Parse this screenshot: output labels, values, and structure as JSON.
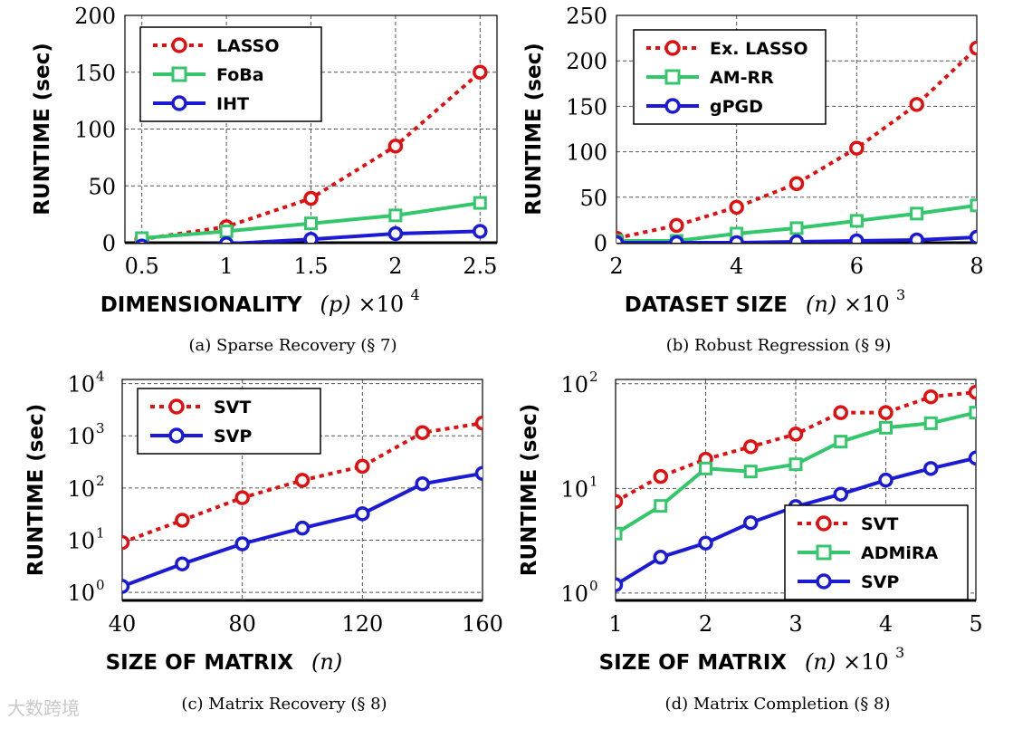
{
  "watermark": "大数跨境",
  "colors": {
    "red": "#e01010",
    "green": "#33c66b",
    "blue": "#1b1bd6"
  },
  "chart_data": [
    {
      "type": "line",
      "caption": "(a) Sparse Recovery (§ 7)",
      "ylabel": "RUNTIME (sec)",
      "xlabel": "DIMENSIONALITY",
      "xvar": "(p)",
      "xunit": "×10",
      "xunit_exp": "4",
      "yscale": "linear",
      "xlim": [
        0.4,
        2.6
      ],
      "ylim": [
        0,
        200
      ],
      "xticks": [
        0.5,
        1,
        1.5,
        2,
        2.5
      ],
      "xticklabels": [
        "0.5",
        "1",
        "1.5",
        "2",
        "2.5"
      ],
      "yticks": [
        0,
        50,
        100,
        150,
        200
      ],
      "yticklabels": [
        "0",
        "50",
        "100",
        "150",
        "200"
      ],
      "grid": true,
      "legend": "top-left",
      "series": [
        {
          "name": "LASSO",
          "color": "#e01010",
          "marker": "circle",
          "dash": true,
          "x": [
            0.5,
            1,
            1.5,
            2,
            2.5
          ],
          "y": [
            3,
            14,
            39,
            85,
            150
          ]
        },
        {
          "name": "FoBa",
          "color": "#33c66b",
          "marker": "square",
          "dash": false,
          "x": [
            0.5,
            1,
            1.5,
            2,
            2.5
          ],
          "y": [
            4,
            10,
            17,
            24,
            35
          ]
        },
        {
          "name": "IHT",
          "color": "#1b1bd6",
          "marker": "circle",
          "dash": false,
          "x": [
            0.5,
            1,
            1.5,
            2,
            2.5
          ],
          "y": [
            -3,
            -1,
            3,
            8,
            10
          ]
        }
      ]
    },
    {
      "type": "line",
      "caption": "(b) Robust Regression (§ 9)",
      "ylabel": "RUNTIME (sec)",
      "xlabel": "DATASET SIZE",
      "xvar": "(n)",
      "xunit": "×10",
      "xunit_exp": "3",
      "yscale": "linear",
      "xlim": [
        2,
        8
      ],
      "ylim": [
        0,
        250
      ],
      "xticks": [
        2,
        4,
        6,
        8
      ],
      "xticklabels": [
        "2",
        "4",
        "6",
        "8"
      ],
      "yticks": [
        0,
        50,
        100,
        150,
        200,
        250
      ],
      "yticklabels": [
        "0",
        "50",
        "100",
        "150",
        "200",
        "250"
      ],
      "grid": true,
      "legend": "top-right",
      "series": [
        {
          "name": "Ex. LASSO",
          "color": "#e01010",
          "marker": "circle",
          "dash": true,
          "x": [
            2,
            3,
            4,
            5,
            6,
            7,
            8
          ],
          "y": [
            5,
            19,
            39,
            65,
            104,
            152,
            214
          ]
        },
        {
          "name": "AM-RR",
          "color": "#33c66b",
          "marker": "square",
          "dash": false,
          "x": [
            2,
            3,
            4,
            5,
            6,
            7,
            8
          ],
          "y": [
            2,
            2,
            10,
            16,
            24,
            32,
            41
          ]
        },
        {
          "name": "gPGD",
          "color": "#1b1bd6",
          "marker": "circle",
          "dash": false,
          "x": [
            2,
            3,
            4,
            5,
            6,
            7,
            8
          ],
          "y": [
            0,
            0,
            0,
            1,
            2,
            3,
            6
          ]
        }
      ]
    },
    {
      "type": "line",
      "caption": "(c) Matrix Recovery (§ 8)",
      "ylabel": "RUNTIME (sec)",
      "xlabel": "SIZE OF MATRIX",
      "xvar": "(n)",
      "xunit": "",
      "xunit_exp": "",
      "yscale": "log",
      "xlim": [
        40,
        160
      ],
      "ylim": [
        0.7,
        12000
      ],
      "xticks": [
        40,
        80,
        120,
        160
      ],
      "xticklabels": [
        "40",
        "80",
        "120",
        "160"
      ],
      "yticks": [
        1,
        10,
        100,
        1000,
        10000
      ],
      "ytickbase": "10",
      "ytickexps": [
        "0",
        "1",
        "2",
        "3",
        "4"
      ],
      "grid": true,
      "legend": "top-left",
      "series": [
        {
          "name": "SVT",
          "color": "#e01010",
          "marker": "circle",
          "dash": true,
          "x": [
            40,
            60,
            80,
            100,
            120,
            140,
            160
          ],
          "y": [
            9,
            24,
            65,
            140,
            260,
            1150,
            1750
          ]
        },
        {
          "name": "SVP",
          "color": "#1b1bd6",
          "marker": "circle",
          "dash": false,
          "x": [
            40,
            60,
            80,
            100,
            120,
            140,
            160
          ],
          "y": [
            1.3,
            3.5,
            8.5,
            17,
            32,
            120,
            190
          ]
        }
      ]
    },
    {
      "type": "line",
      "caption": "(d) Matrix Completion (§ 8)",
      "ylabel": "RUNTIME (sec)",
      "xlabel": "SIZE OF MATRIX",
      "xvar": "(n)",
      "xunit": "×10",
      "xunit_exp": "3",
      "yscale": "log",
      "xlim": [
        1,
        5
      ],
      "ylim": [
        0.85,
        110
      ],
      "xticks": [
        1,
        2,
        3,
        4,
        5
      ],
      "xticklabels": [
        "1",
        "2",
        "3",
        "4",
        "5"
      ],
      "yticks": [
        1,
        10,
        100
      ],
      "ytickbase": "10",
      "ytickexps": [
        "0",
        "1",
        "2"
      ],
      "grid": true,
      "legend": "bottom-right",
      "series": [
        {
          "name": "SVT",
          "color": "#e01010",
          "marker": "circle",
          "dash": true,
          "x": [
            1,
            1.5,
            2,
            2.5,
            3,
            3.5,
            4,
            4.5,
            5
          ],
          "y": [
            7.5,
            13,
            19,
            25,
            33,
            53,
            53,
            75,
            83
          ]
        },
        {
          "name": "ADMiRA",
          "color": "#33c66b",
          "marker": "square",
          "dash": false,
          "x": [
            1,
            1.5,
            2,
            2.5,
            3,
            3.5,
            4,
            4.5,
            5
          ],
          "y": [
            3.7,
            6.8,
            15.5,
            14.5,
            17,
            28,
            38,
            42,
            53
          ]
        },
        {
          "name": "SVP",
          "color": "#1b1bd6",
          "marker": "circle",
          "dash": false,
          "x": [
            1,
            1.5,
            2,
            2.5,
            3,
            3.5,
            4,
            4.5,
            5
          ],
          "y": [
            1.2,
            2.2,
            3.0,
            4.7,
            6.7,
            8.8,
            12,
            15.5,
            19.5
          ]
        }
      ]
    }
  ]
}
